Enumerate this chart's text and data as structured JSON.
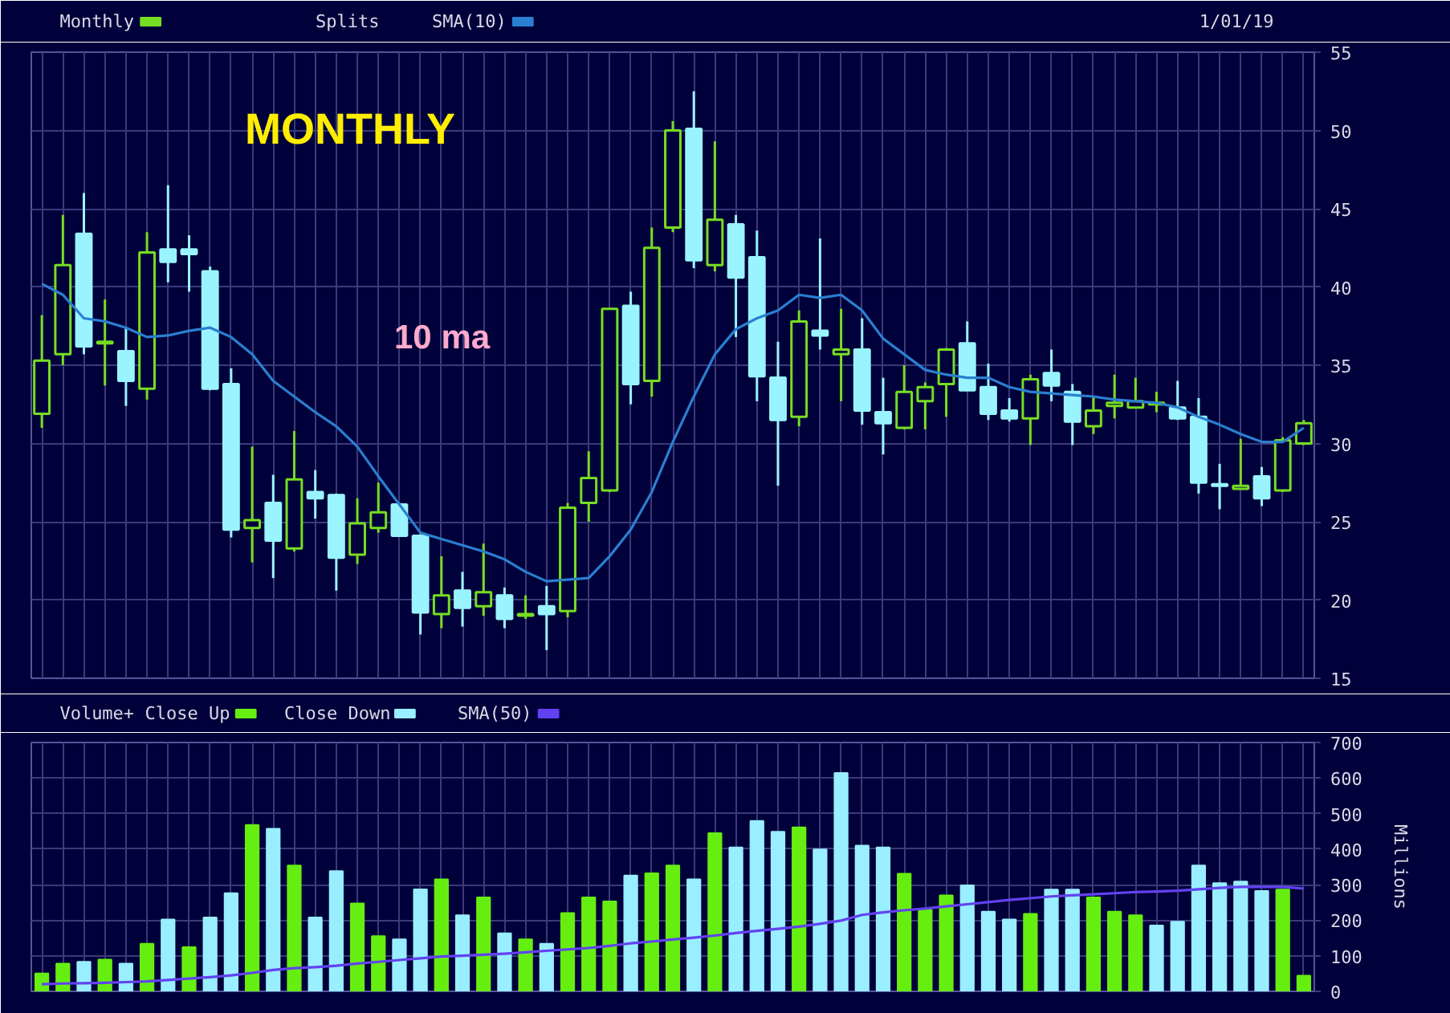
{
  "chart_data": [
    {
      "type": "candlestick",
      "title": "MONTHLY",
      "categories": [
        null,
        null,
        null,
        null,
        null,
        null,
        null,
        null,
        null,
        null,
        null,
        null,
        null,
        null,
        null,
        null,
        null,
        null,
        null,
        null,
        null,
        null,
        null,
        null,
        null,
        null,
        null,
        null,
        null,
        null,
        null,
        null,
        null,
        null,
        null,
        null,
        null,
        null,
        null,
        null,
        null,
        null,
        null,
        null,
        null,
        null,
        null,
        null,
        null,
        null,
        null,
        null,
        null,
        null,
        null,
        null,
        null,
        null,
        null,
        null,
        null
      ],
      "series": [
        {
          "name": "Monthly",
          "type": "candlestick",
          "ohlc": [
            [
              31.9,
              38.2,
              31.0,
              35.3
            ],
            [
              35.7,
              44.6,
              35.0,
              41.4
            ],
            [
              43.4,
              46.0,
              35.7,
              36.2
            ],
            [
              36.4,
              39.2,
              33.7,
              36.5
            ],
            [
              35.9,
              37.4,
              32.4,
              34.0
            ],
            [
              33.5,
              43.5,
              32.8,
              42.2
            ],
            [
              42.4,
              46.5,
              40.3,
              41.6
            ],
            [
              42.4,
              43.3,
              39.7,
              42.1
            ],
            [
              41.0,
              41.3,
              33.4,
              33.5
            ],
            [
              33.8,
              34.8,
              24.0,
              24.5
            ],
            [
              24.6,
              29.8,
              22.4,
              25.1
            ],
            [
              26.2,
              28.0,
              21.4,
              23.8
            ],
            [
              23.3,
              30.8,
              23.1,
              27.7
            ],
            [
              26.9,
              28.3,
              25.2,
              26.5
            ],
            [
              26.7,
              26.8,
              20.6,
              22.7
            ],
            [
              22.9,
              26.5,
              22.3,
              24.9
            ],
            [
              24.6,
              27.5,
              24.3,
              25.6
            ],
            [
              26.1,
              26.2,
              24.1,
              24.1
            ],
            [
              24.1,
              24.2,
              17.8,
              19.2
            ],
            [
              19.1,
              22.8,
              18.2,
              20.3
            ],
            [
              20.6,
              21.8,
              18.3,
              19.5
            ],
            [
              19.6,
              23.6,
              19.0,
              20.5
            ],
            [
              20.3,
              20.8,
              18.2,
              18.8
            ],
            [
              19.0,
              20.3,
              18.8,
              19.1
            ],
            [
              19.6,
              20.9,
              16.8,
              19.1
            ],
            [
              19.3,
              26.2,
              18.9,
              25.9
            ],
            [
              26.2,
              29.5,
              25.0,
              27.8
            ],
            [
              27.0,
              38.6,
              26.9,
              38.6
            ],
            [
              38.8,
              39.7,
              32.5,
              33.8
            ],
            [
              34.0,
              43.8,
              33.0,
              42.5
            ],
            [
              43.8,
              50.6,
              43.5,
              50.0
            ],
            [
              50.1,
              52.5,
              41.2,
              41.7
            ],
            [
              41.4,
              49.3,
              41.0,
              44.3
            ],
            [
              44.0,
              44.6,
              36.8,
              40.6
            ],
            [
              41.9,
              43.6,
              32.7,
              34.3
            ],
            [
              34.2,
              36.5,
              27.3,
              31.5
            ],
            [
              31.7,
              38.5,
              31.1,
              37.8
            ],
            [
              37.2,
              43.1,
              36.0,
              36.9
            ],
            [
              35.7,
              38.6,
              32.7,
              36.0
            ],
            [
              36.0,
              38.0,
              31.2,
              32.1
            ],
            [
              32.0,
              34.2,
              29.3,
              31.3
            ],
            [
              31.0,
              35.0,
              30.9,
              33.3
            ],
            [
              32.7,
              33.9,
              30.9,
              33.6
            ],
            [
              33.8,
              36.1,
              31.7,
              36.0
            ],
            [
              36.4,
              37.8,
              33.4,
              33.4
            ],
            [
              33.6,
              35.1,
              31.5,
              31.9
            ],
            [
              32.1,
              32.9,
              31.4,
              31.6
            ],
            [
              31.6,
              34.4,
              29.9,
              34.1
            ],
            [
              34.5,
              36.0,
              32.7,
              33.7
            ],
            [
              33.3,
              33.8,
              29.9,
              31.4
            ],
            [
              31.1,
              33.0,
              30.6,
              32.1
            ],
            [
              32.4,
              34.4,
              31.6,
              32.6
            ],
            [
              32.3,
              34.2,
              32.3,
              32.7
            ],
            [
              32.5,
              33.3,
              32.0,
              32.6
            ],
            [
              32.3,
              34.0,
              31.5,
              31.6
            ],
            [
              31.7,
              32.9,
              26.8,
              27.5
            ],
            [
              27.4,
              28.7,
              25.8,
              27.3
            ],
            [
              27.1,
              30.3,
              27.1,
              27.3
            ],
            [
              27.9,
              28.5,
              26.0,
              26.5
            ],
            [
              27.0,
              30.4,
              26.9,
              30.2
            ],
            [
              30.0,
              31.5,
              29.9,
              31.3
            ]
          ],
          "colors": [
            "#77dd22",
            "#77dd22",
            "#99f4ff",
            "#77dd22",
            "#99f4ff",
            "#77dd22",
            "#99f4ff",
            "#99f4ff",
            "#99f4ff",
            "#99f4ff",
            "#77dd22",
            "#99f4ff",
            "#77dd22",
            "#99f4ff",
            "#99f4ff",
            "#77dd22",
            "#77dd22",
            "#99f4ff",
            "#99f4ff",
            "#77dd22",
            "#99f4ff",
            "#77dd22",
            "#99f4ff",
            "#77dd22",
            "#99f4ff",
            "#77dd22",
            "#77dd22",
            "#77dd22",
            "#99f4ff",
            "#77dd22",
            "#77dd22",
            "#99f4ff",
            "#77dd22",
            "#99f4ff",
            "#99f4ff",
            "#99f4ff",
            "#77dd22",
            "#99f4ff",
            "#77dd22",
            "#99f4ff",
            "#99f4ff",
            "#77dd22",
            "#77dd22",
            "#77dd22",
            "#99f4ff",
            "#99f4ff",
            "#99f4ff",
            "#77dd22",
            "#99f4ff",
            "#99f4ff",
            "#77dd22",
            "#77dd22",
            "#77dd22",
            "#77dd22",
            "#99f4ff",
            "#99f4ff",
            "#99f4ff",
            "#77dd22",
            "#99f4ff",
            "#77dd22",
            "#77dd22"
          ]
        },
        {
          "name": "SMA(10)",
          "type": "line",
          "color": "#2a7fd0",
          "values": [
            40.2,
            39.5,
            38.0,
            37.8,
            37.4,
            36.8,
            36.9,
            37.2,
            37.4,
            36.8,
            35.7,
            34.0,
            33.0,
            32.0,
            31.1,
            29.8,
            27.9,
            26.1,
            24.3,
            23.9,
            23.5,
            23.1,
            22.6,
            21.8,
            21.2,
            21.3,
            21.4,
            22.8,
            24.5,
            26.9,
            30.1,
            33.0,
            35.7,
            37.3,
            38.0,
            38.5,
            39.5,
            39.3,
            39.5,
            38.5,
            36.7,
            35.7,
            34.7,
            34.4,
            34.2,
            34.2,
            33.6,
            33.3,
            33.2,
            33.1,
            33.0,
            32.8,
            32.7,
            32.6,
            32.3,
            31.7,
            31.2,
            30.6,
            30.1,
            30.1,
            31.0
          ]
        }
      ],
      "ylim": [
        15,
        55
      ],
      "yticks": [
        15,
        20,
        25,
        30,
        35,
        40,
        45,
        50,
        55
      ],
      "grid": true,
      "legend": "top",
      "tick_labels": "y",
      "annotations": [
        "Splits",
        "10 ma",
        "1/01/19"
      ]
    },
    {
      "type": "bar",
      "ylabel": "Millions",
      "legend_title": "Volume+",
      "categories": [
        null,
        null,
        null,
        null,
        null,
        null,
        null,
        null,
        null,
        null,
        null,
        null,
        null,
        null,
        null,
        null,
        null,
        null,
        null,
        null,
        null,
        null,
        null,
        null,
        null,
        null,
        null,
        null,
        null,
        null,
        null,
        null,
        null,
        null,
        null,
        null,
        null,
        null,
        null,
        null,
        null,
        null,
        null,
        null,
        null,
        null,
        null,
        null,
        null,
        null,
        null,
        null,
        null,
        null,
        null,
        null,
        null,
        null,
        null,
        null,
        null
      ],
      "series": [
        {
          "name": "Close Up",
          "color": "#66ee11",
          "values": [
            50,
            78,
            null,
            89,
            null,
            134,
            null,
            124,
            null,
            null,
            468,
            null,
            354,
            null,
            null,
            247,
            155,
            null,
            null,
            315,
            null,
            264,
            null,
            146,
            null,
            220,
            264,
            253,
            null,
            332,
            354,
            null,
            445,
            null,
            null,
            null,
            461,
            null,
            null,
            null,
            null,
            331,
            230,
            270,
            null,
            null,
            null,
            218,
            null,
            null,
            264,
            224,
            214,
            null,
            null,
            null,
            null,
            null,
            null,
            286,
            44
          ]
        },
        {
          "name": "Close Down",
          "color": "#99eeff",
          "values": [
            null,
            null,
            83,
            null,
            78,
            null,
            202,
            null,
            208,
            276,
            null,
            457,
            null,
            208,
            338,
            null,
            null,
            146,
            287,
            null,
            214,
            null,
            163,
            null,
            134,
            null,
            null,
            null,
            326,
            null,
            null,
            315,
            null,
            405,
            479,
            449,
            null,
            399,
            614,
            410,
            405,
            null,
            null,
            null,
            298,
            224,
            202,
            null,
            286,
            286,
            null,
            null,
            null,
            185,
            196,
            354,
            304,
            309,
            282,
            null,
            null
          ]
        },
        {
          "name": "SMA(50)",
          "type": "line",
          "color": "#6242f0",
          "values": [
            20,
            22,
            23,
            24,
            26,
            28,
            32,
            36,
            40,
            45,
            52,
            60,
            65,
            68,
            72,
            78,
            83,
            88,
            93,
            98,
            100,
            103,
            106,
            110,
            114,
            118,
            122,
            128,
            135,
            140,
            146,
            151,
            157,
            164,
            170,
            176,
            182,
            190,
            199,
            215,
            222,
            228,
            233,
            239,
            245,
            251,
            257,
            262,
            267,
            270,
            273,
            276,
            279,
            281,
            283,
            287,
            291,
            294,
            294,
            294,
            289
          ]
        }
      ],
      "ylim": [
        0,
        700
      ],
      "yticks": [
        0,
        100,
        200,
        300,
        400,
        500,
        600,
        700
      ],
      "grid": true,
      "legend": "top",
      "tick_labels": "y"
    }
  ]
}
